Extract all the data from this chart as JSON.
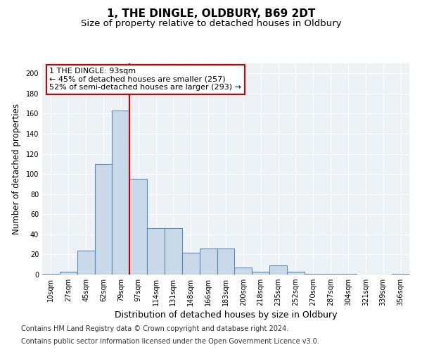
{
  "title": "1, THE DINGLE, OLDBURY, B69 2DT",
  "subtitle": "Size of property relative to detached houses in Oldbury",
  "xlabel": "Distribution of detached houses by size in Oldbury",
  "ylabel": "Number of detached properties",
  "categories": [
    "10sqm",
    "27sqm",
    "45sqm",
    "62sqm",
    "79sqm",
    "97sqm",
    "114sqm",
    "131sqm",
    "148sqm",
    "166sqm",
    "183sqm",
    "200sqm",
    "218sqm",
    "235sqm",
    "252sqm",
    "270sqm",
    "287sqm",
    "304sqm",
    "321sqm",
    "339sqm",
    "356sqm"
  ],
  "values": [
    1,
    3,
    24,
    110,
    163,
    95,
    46,
    46,
    22,
    26,
    26,
    7,
    3,
    9,
    3,
    1,
    1,
    1,
    0,
    0,
    1
  ],
  "bar_color": "#c9d9e8",
  "bar_edge_color": "#5a8ab5",
  "bar_linewidth": 0.8,
  "vline_x_index": 4.5,
  "vline_color": "#cc0000",
  "vline_linewidth": 1.5,
  "annotation_text": "1 THE DINGLE: 93sqm\n← 45% of detached houses are smaller (257)\n52% of semi-detached houses are larger (293) →",
  "annotation_box_color": "#ffffff",
  "annotation_box_edge": "#cc0000",
  "annotation_fontsize": 8,
  "ylim": [
    0,
    210
  ],
  "yticks": [
    0,
    20,
    40,
    60,
    80,
    100,
    120,
    140,
    160,
    180,
    200
  ],
  "footer_line1": "Contains HM Land Registry data © Crown copyright and database right 2024.",
  "footer_line2": "Contains public sector information licensed under the Open Government Licence v3.0.",
  "bg_color": "#edf2f7",
  "title_fontsize": 11,
  "subtitle_fontsize": 9.5,
  "xlabel_fontsize": 9,
  "ylabel_fontsize": 8.5,
  "tick_fontsize": 7,
  "footer_fontsize": 7
}
